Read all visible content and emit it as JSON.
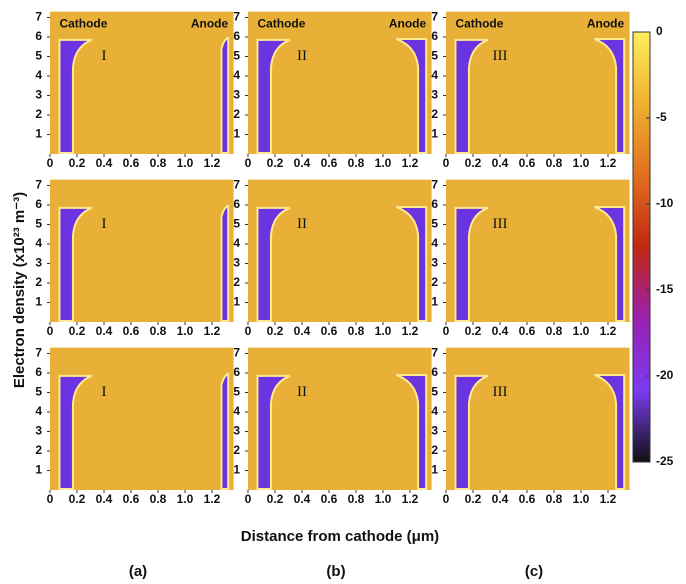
{
  "y_label": "Electron density (x10²³ m⁻³)",
  "x_label": "Distance from cathode (μm)",
  "panel_letters": [
    "(a)",
    "(b)",
    "(c)"
  ],
  "columns": [
    "I",
    "II",
    "III"
  ],
  "electrode_labels": [
    "Cathode",
    "Anode"
  ],
  "xlim": [
    0,
    1.36
  ],
  "ylim": [
    0,
    7.3
  ],
  "xticks": [
    0,
    0.2,
    0.4,
    0.6,
    0.8,
    {
      "value": 1,
      "label": "1.0"
    },
    1.2
  ],
  "yticks": [
    1,
    2,
    3,
    4,
    5,
    6,
    7
  ],
  "colorbar": {
    "lim": [
      -25,
      0
    ],
    "ticks": [
      0,
      -5,
      -10,
      -15,
      -20,
      -25
    ],
    "colors": [
      "#ffee60",
      "#f0b030",
      "#e07020",
      "#c02810",
      "#9a20b0",
      "#7a3cf0",
      "#101010"
    ]
  }
}
